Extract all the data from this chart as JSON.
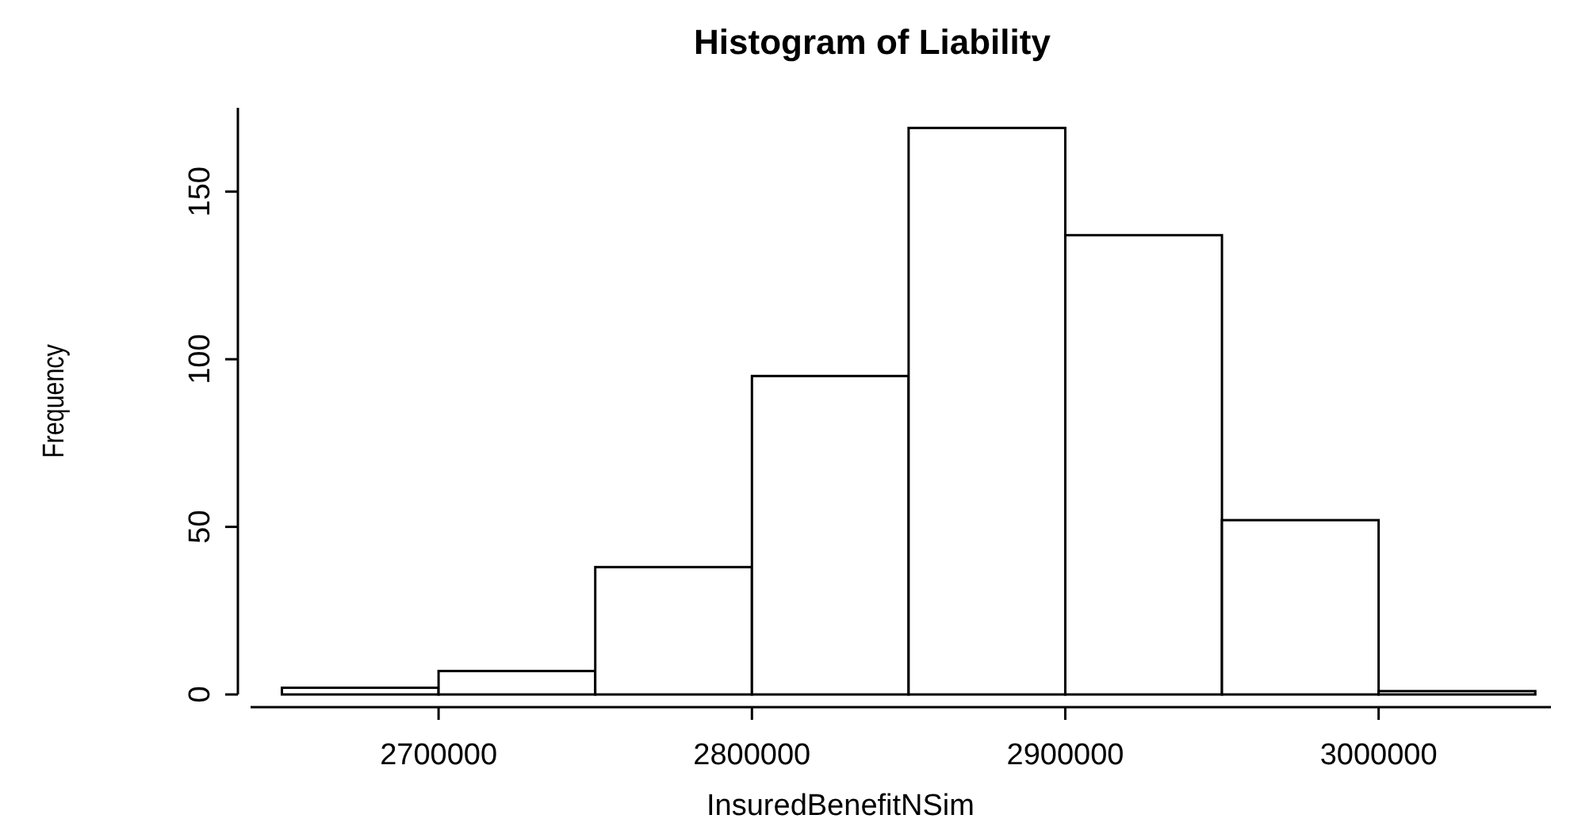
{
  "chart_data": {
    "type": "histogram",
    "title": "Histogram of Liability",
    "xlabel": "InsuredBenefitNSim",
    "ylabel": "Frequency",
    "bins": [
      2650000,
      2700000,
      2750000,
      2800000,
      2850000,
      2900000,
      2950000,
      3000000,
      3050000
    ],
    "values": [
      2,
      7,
      38,
      95,
      169,
      137,
      52,
      1
    ],
    "color": "#ffffff",
    "xlim": [
      2640000,
      3055000
    ],
    "xticks": [
      2700000,
      2800000,
      2900000,
      3000000
    ],
    "ylim": [
      0,
      175
    ],
    "yticks": [
      0,
      50,
      100,
      150
    ],
    "grid": false
  }
}
